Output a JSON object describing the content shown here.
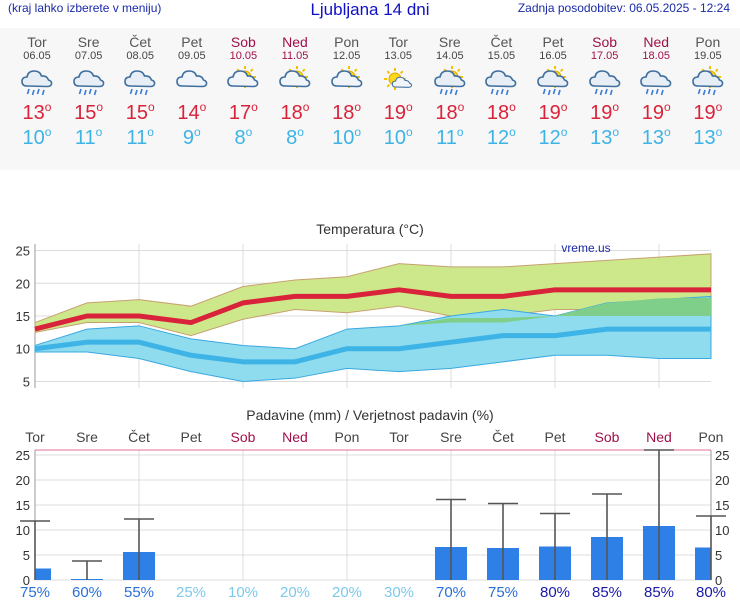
{
  "header": {
    "left_note": "(kraj lahko izberete v meniju)",
    "title": "Ljubljana 14 dni",
    "updated": "Zadnja posodobitev: 06.05.2025 - 12:24"
  },
  "forecast": [
    {
      "day": "Tor",
      "date": "06.05",
      "icon": "cloud-rain-icon",
      "max": "13",
      "min": "10",
      "weekend": false
    },
    {
      "day": "Sre",
      "date": "07.05",
      "icon": "cloud-rain-icon",
      "max": "15",
      "min": "11",
      "weekend": false
    },
    {
      "day": "Čet",
      "date": "08.05",
      "icon": "cloud-rain-icon",
      "max": "15",
      "min": "11",
      "weekend": false
    },
    {
      "day": "Pet",
      "date": "09.05",
      "icon": "cloud-icon",
      "max": "14",
      "min": "9",
      "weekend": false
    },
    {
      "day": "Sob",
      "date": "10.05",
      "icon": "sun-cloud-icon",
      "max": "17",
      "min": "8",
      "weekend": true
    },
    {
      "day": "Ned",
      "date": "11.05",
      "icon": "sun-cloud-icon",
      "max": "18",
      "min": "8",
      "weekend": true
    },
    {
      "day": "Pon",
      "date": "12.05",
      "icon": "sun-cloud-icon",
      "max": "18",
      "min": "10",
      "weekend": false
    },
    {
      "day": "Tor",
      "date": "13.05",
      "icon": "sun-small-cloud-icon",
      "max": "19",
      "min": "10",
      "weekend": false
    },
    {
      "day": "Sre",
      "date": "14.05",
      "icon": "sun-cloud-rain-icon",
      "max": "18",
      "min": "11",
      "weekend": false
    },
    {
      "day": "Čet",
      "date": "15.05",
      "icon": "cloud-rain-icon",
      "max": "18",
      "min": "12",
      "weekend": false
    },
    {
      "day": "Pet",
      "date": "16.05",
      "icon": "sun-cloud-rain-icon",
      "max": "19",
      "min": "12",
      "weekend": false
    },
    {
      "day": "Sob",
      "date": "17.05",
      "icon": "cloud-rain-icon",
      "max": "19",
      "min": "13",
      "weekend": true
    },
    {
      "day": "Ned",
      "date": "18.05",
      "icon": "cloud-rain-icon",
      "max": "19",
      "min": "13",
      "weekend": true
    },
    {
      "day": "Pon",
      "date": "19.05",
      "icon": "sun-cloud-rain-icon",
      "max": "19",
      "min": "13",
      "weekend": false
    }
  ],
  "colors": {
    "max": "#d9233a",
    "min": "#3db3e6",
    "weekend": "#a0104a",
    "bar": "#2f80e6",
    "max_band": "#cde88a",
    "min_band": "#8fdcee"
  },
  "chart_data": [
    {
      "type": "line",
      "title": "Temperatura (°C)",
      "watermark": "vreme.us",
      "x": [
        "06.05",
        "07.05",
        "08.05",
        "09.05",
        "10.05",
        "11.05",
        "12.05",
        "13.05",
        "14.05",
        "15.05",
        "16.05",
        "17.05",
        "18.05",
        "19.05"
      ],
      "ylim": [
        4,
        26
      ],
      "yticks": [
        5,
        10,
        15,
        20,
        25
      ],
      "grid": true,
      "series": [
        {
          "values": [
            13,
            15,
            15,
            14,
            17,
            18,
            18,
            19,
            18,
            18,
            19,
            19,
            19,
            19
          ]
        },
        {
          "values": [
            10,
            11,
            11,
            9,
            8,
            8,
            10,
            10,
            11,
            12,
            12,
            13,
            13,
            13
          ]
        }
      ],
      "max_band": {
        "upper": [
          14,
          17,
          17.5,
          16.5,
          19.5,
          20.5,
          21,
          23,
          22.5,
          22.5,
          23,
          23.5,
          24,
          24.5
        ],
        "lower": [
          12.5,
          14,
          14,
          12,
          14.5,
          16,
          15.5,
          16.5,
          15,
          15,
          16,
          16,
          16,
          15.5
        ]
      },
      "max_band_dark": {
        "upper": [
          13.5,
          13.5,
          13.5,
          13.5,
          13.5,
          13.5,
          13.5,
          13.5,
          14.7,
          14.7,
          15,
          17,
          17.7,
          17.8
        ],
        "lower": [
          13.5,
          13.5,
          13.5,
          13.5,
          13.5,
          13.5,
          13.5,
          13.5,
          14,
          14,
          15,
          15,
          15,
          15
        ]
      },
      "min_band": {
        "upper": [
          10.5,
          13,
          13.5,
          11.5,
          10.5,
          10,
          13,
          13.5,
          15,
          16,
          15,
          17,
          17.5,
          18
        ],
        "lower": [
          9.5,
          9.5,
          8.5,
          6.5,
          5,
          5.5,
          7,
          6.5,
          7,
          8,
          9,
          9,
          8.5,
          8.5
        ]
      }
    },
    {
      "type": "bar",
      "title": "Padavine (mm) / Verjetnost padavin (%)",
      "categories": [
        "Tor",
        "Sre",
        "Čet",
        "Pet",
        "Sob",
        "Ned",
        "Pon",
        "Tor",
        "Sre",
        "Čet",
        "Pet",
        "Sob",
        "Ned",
        "Pon"
      ],
      "weekend": [
        false,
        false,
        false,
        false,
        true,
        true,
        false,
        false,
        false,
        false,
        false,
        true,
        true,
        false
      ],
      "values": [
        2.3,
        0.2,
        5.6,
        0,
        0,
        0,
        0,
        0,
        6.6,
        6.4,
        6.7,
        8.6,
        10.8,
        6.5
      ],
      "error_high": [
        11.8,
        3.8,
        12.2,
        0,
        0,
        0,
        0,
        0,
        16.1,
        15.3,
        13.3,
        17.2,
        26,
        12.8
      ],
      "probability": [
        "75%",
        "60%",
        "55%",
        "25%",
        "10%",
        "20%",
        "20%",
        "30%",
        "70%",
        "75%",
        "80%",
        "85%",
        "85%",
        "80%"
      ],
      "prob_values": [
        75,
        60,
        55,
        25,
        10,
        20,
        20,
        30,
        70,
        75,
        80,
        85,
        85,
        80
      ],
      "ylim": [
        0,
        26
      ],
      "yticks": [
        0,
        5,
        10,
        15,
        20,
        25
      ],
      "grid": true
    }
  ]
}
